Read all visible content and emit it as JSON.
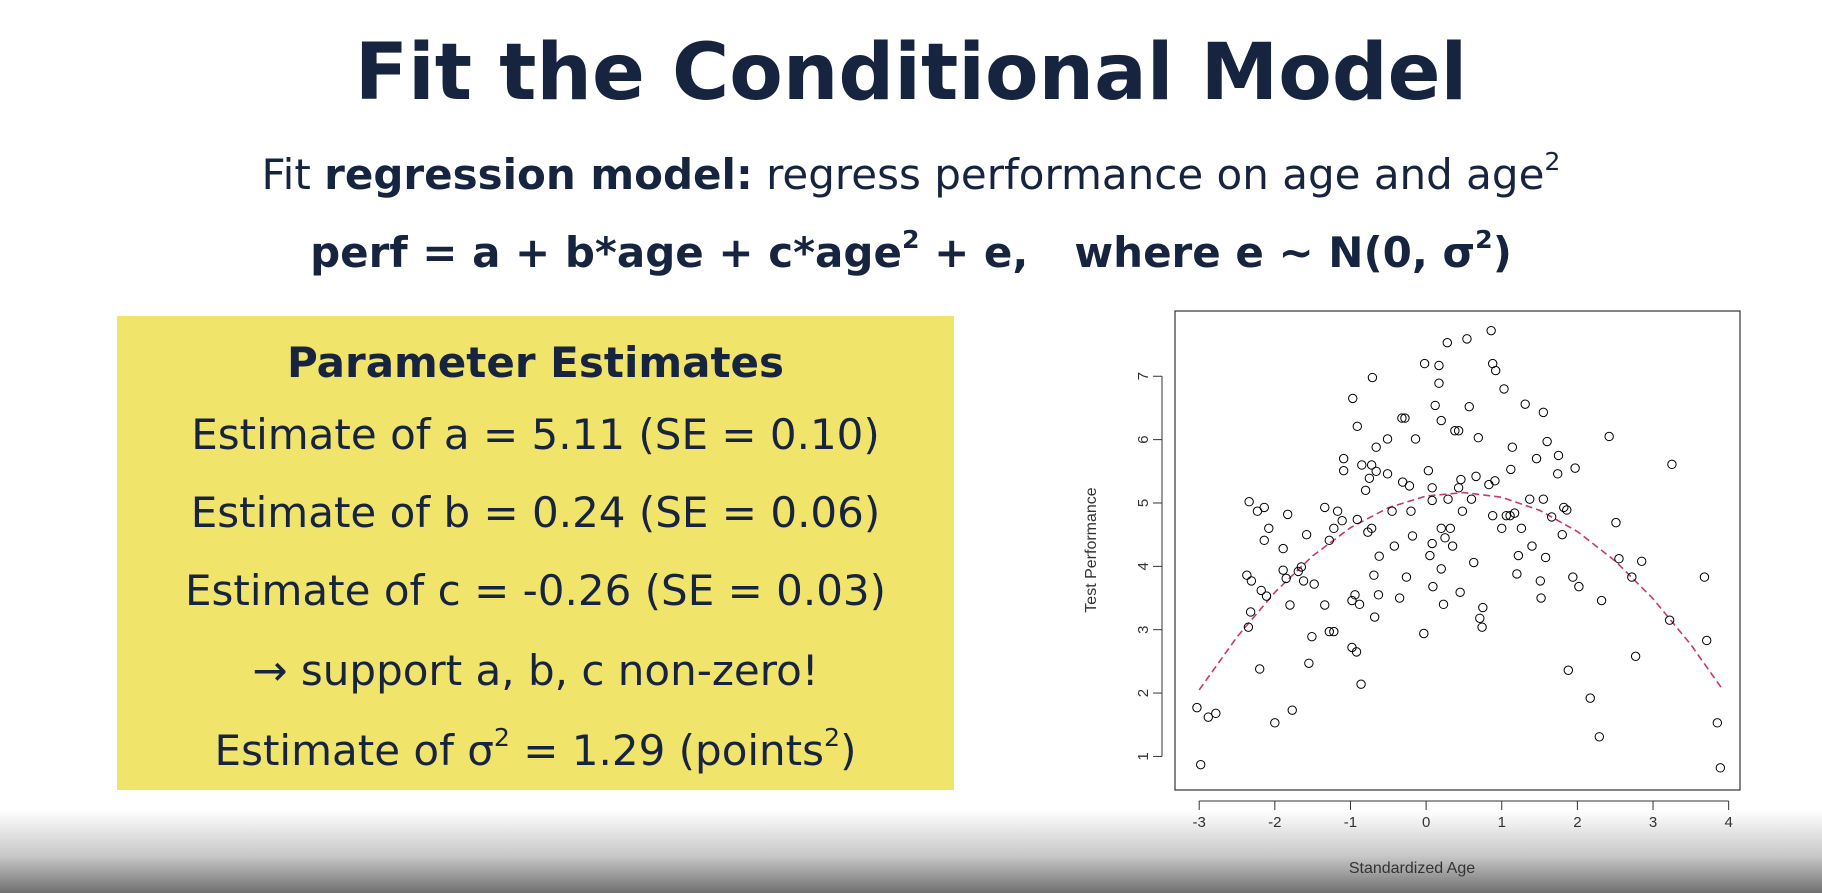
{
  "header": {
    "title": "Fit the Conditional Model"
  },
  "intro": {
    "parts": [
      "Fit ",
      "regression model:",
      " regress performance on age and age",
      "2"
    ]
  },
  "equation": {
    "parts": [
      "perf = a + b*age + c*age",
      "2",
      " + e,",
      "where e ~ N(0, σ",
      "2",
      ")"
    ]
  },
  "estimates": {
    "heading": "Parameter Estimates",
    "lines": [
      [
        "Estimate of a = 5.11 (SE = 0.10)"
      ],
      [
        "Estimate of b = 0.24 (SE = 0.06)"
      ],
      [
        "Estimate of c = -0.26 (SE = 0.03)"
      ],
      [
        "→ support a, b, c non-zero!"
      ],
      [
        "Estimate of σ",
        "2",
        " = 1.29 (points",
        "2",
        ")"
      ]
    ]
  },
  "chart_data": {
    "type": "scatter",
    "x_label": "Standardized Age",
    "y_label": "Test Performance",
    "xlim": [
      -3.32,
      4.15
    ],
    "ylim": [
      0.47,
      8.03
    ],
    "xticks": [
      -3,
      -2,
      -1,
      0,
      1,
      2,
      3,
      4
    ],
    "yticks": [
      1,
      2,
      3,
      4,
      5,
      6,
      7
    ],
    "series": [
      {
        "color": "#000000",
        "x": [
          -3.03,
          -2.98,
          -2.88,
          -2.78,
          -2.34,
          -2.37,
          -2.31,
          -2.32,
          -2.35,
          -2.2,
          -2.23,
          -2.14,
          -2.14,
          -2.08,
          -2.18,
          -2.11,
          -2.0,
          -1.89,
          -1.83,
          -1.89,
          -1.8,
          -1.77,
          -1.85,
          -1.69,
          -1.65,
          -1.58,
          -1.55,
          -1.51,
          -1.62,
          -1.48,
          -1.34,
          -1.34,
          -1.28,
          -1.22,
          -1.28,
          -1.22,
          -1.17,
          -1.11,
          -1.09,
          -1.09,
          -0.97,
          -0.98,
          -0.94,
          -0.98,
          -0.92,
          -0.88,
          -0.86,
          -0.91,
          -0.91,
          -0.85,
          -0.8,
          -0.75,
          -0.72,
          -0.77,
          -0.72,
          -0.69,
          -0.68,
          -0.62,
          -0.63,
          -0.66,
          -0.66,
          -0.71,
          -0.51,
          -0.51,
          -0.45,
          -0.42,
          -0.35,
          -0.31,
          -0.32,
          -0.28,
          -0.26,
          -0.22,
          -0.2,
          -0.18,
          -0.14,
          -0.03,
          -0.02,
          0.03,
          0.08,
          0.08,
          0.05,
          0.08,
          0.09,
          0.12,
          0.17,
          0.17,
          0.2,
          0.2,
          0.2,
          0.23,
          0.25,
          0.28,
          0.29,
          0.32,
          0.35,
          0.38,
          0.43,
          0.43,
          0.46,
          0.45,
          0.48,
          0.54,
          0.57,
          0.6,
          0.63,
          0.66,
          0.69,
          0.71,
          0.74,
          0.75,
          0.86,
          0.88,
          0.92,
          0.83,
          0.88,
          0.91,
          1.0,
          1.03,
          1.06,
          1.11,
          1.12,
          1.14,
          1.17,
          1.2,
          1.22,
          1.26,
          1.31,
          1.37,
          1.4,
          1.46,
          1.51,
          1.52,
          1.55,
          1.55,
          1.58,
          1.6,
          1.66,
          1.74,
          1.75,
          1.8,
          1.82,
          1.86,
          1.88,
          1.94,
          1.97,
          2.02,
          2.17,
          2.29,
          2.32,
          2.42,
          2.51,
          2.55,
          2.72,
          2.77,
          2.85,
          3.22,
          3.25,
          3.68,
          3.71,
          3.85,
          3.89
        ],
        "values": [
          1.77,
          0.87,
          1.62,
          1.68,
          5.02,
          3.86,
          3.77,
          3.28,
          3.04,
          2.38,
          4.87,
          4.93,
          4.41,
          4.6,
          3.62,
          3.53,
          1.53,
          4.28,
          4.82,
          3.94,
          3.39,
          1.73,
          3.81,
          3.92,
          3.99,
          4.5,
          2.47,
          2.89,
          3.77,
          3.72,
          4.93,
          3.39,
          2.97,
          2.97,
          4.41,
          4.6,
          4.87,
          4.72,
          5.7,
          5.51,
          6.65,
          3.46,
          3.55,
          2.72,
          2.65,
          3.4,
          2.14,
          6.21,
          4.74,
          5.6,
          5.2,
          5.39,
          5.6,
          4.54,
          4.6,
          3.86,
          3.2,
          4.16,
          3.55,
          5.88,
          5.5,
          6.98,
          6.01,
          5.46,
          4.87,
          4.32,
          3.5,
          5.33,
          6.34,
          6.34,
          3.83,
          5.27,
          4.87,
          4.48,
          6.01,
          2.94,
          7.2,
          5.51,
          5.24,
          5.04,
          4.17,
          4.36,
          3.68,
          6.54,
          6.89,
          7.17,
          6.3,
          4.6,
          3.96,
          3.4,
          4.45,
          7.53,
          5.06,
          4.6,
          4.32,
          6.14,
          6.14,
          5.24,
          5.37,
          3.59,
          4.87,
          7.59,
          6.52,
          5.06,
          4.06,
          5.42,
          6.03,
          3.18,
          3.04,
          3.35,
          7.72,
          7.2,
          7.09,
          5.29,
          4.8,
          5.35,
          4.6,
          6.8,
          4.8,
          4.8,
          5.53,
          5.88,
          4.84,
          3.88,
          4.17,
          4.6,
          6.56,
          5.06,
          4.32,
          5.7,
          3.77,
          3.5,
          6.43,
          5.06,
          4.14,
          5.97,
          4.78,
          5.46,
          5.75,
          4.5,
          4.93,
          4.89,
          2.36,
          3.83,
          5.55,
          3.68,
          1.92,
          1.31,
          3.46,
          6.05,
          4.69,
          4.12,
          3.83,
          2.58,
          4.08,
          3.15,
          5.61,
          3.83,
          2.83,
          1.53,
          0.82
        ]
      }
    ],
    "fit_line": {
      "color": "#c8386a",
      "x": [
        -3,
        -2.5,
        -2,
        -1.5,
        -1,
        -0.5,
        0,
        0.5,
        1,
        1.5,
        2,
        2.5,
        3,
        3.5,
        3.9
      ],
      "values": [
        2.05,
        2.885,
        3.59,
        4.165,
        4.61,
        4.925,
        5.11,
        5.165,
        5.09,
        4.885,
        4.55,
        4.085,
        3.49,
        2.765,
        2.09
      ]
    }
  }
}
